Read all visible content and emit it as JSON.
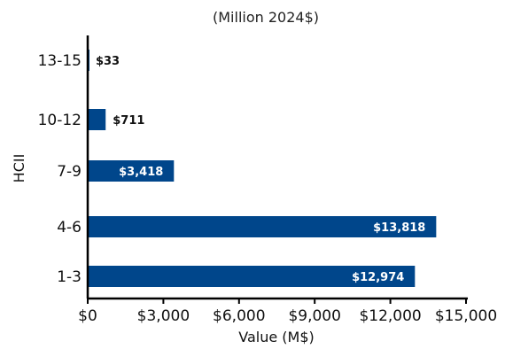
{
  "chart_data": {
    "type": "bar",
    "orientation": "horizontal",
    "title": "",
    "subtitle": "(Million 2024$)",
    "xlabel": "Value (M$)",
    "ylabel": "HCII",
    "categories": [
      "13-15",
      "10-12",
      "7-9",
      "4-6",
      "1-3"
    ],
    "values": [
      33,
      711,
      3418,
      13818,
      12974
    ],
    "data_labels": [
      "$33",
      "$711",
      "$3,418",
      "$13,818",
      "$12,974"
    ],
    "xlim": [
      0,
      15000
    ],
    "x_ticks": [
      0,
      3000,
      6000,
      9000,
      12000,
      15000
    ],
    "x_tick_labels": [
      "$0",
      "$3,000",
      "$6,000",
      "$9,000",
      "$12,000",
      "$15,000"
    ],
    "grid": false,
    "bar_color": "#00468b"
  }
}
